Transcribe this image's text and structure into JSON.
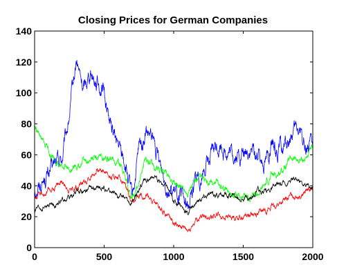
{
  "chart_data": {
    "type": "line",
    "title": "Closing Prices for German Companies",
    "xlabel": "",
    "ylabel": "",
    "xlim": [
      0,
      2000
    ],
    "ylim": [
      0,
      140
    ],
    "x_ticks": [
      0,
      500,
      1000,
      1500,
      2000
    ],
    "y_ticks": [
      0,
      20,
      40,
      60,
      80,
      100,
      120,
      140
    ],
    "grid": false,
    "legend": "none",
    "series": [
      {
        "color": "#0000ff",
        "x": [
          0,
          50,
          100,
          150,
          200,
          250,
          300,
          350,
          400,
          450,
          500,
          550,
          600,
          650,
          700,
          750,
          800,
          850,
          900,
          950,
          1000,
          1050,
          1100,
          1150,
          1200,
          1250,
          1300,
          1350,
          1400,
          1450,
          1500,
          1550,
          1600,
          1650,
          1700,
          1750,
          1800,
          1850,
          1900,
          1950,
          2000
        ],
        "y": [
          38,
          42,
          48,
          54,
          58,
          85,
          120,
          102,
          115,
          108,
          100,
          78,
          66,
          55,
          30,
          62,
          74,
          68,
          54,
          42,
          35,
          32,
          26,
          42,
          48,
          56,
          64,
          66,
          60,
          58,
          60,
          62,
          60,
          58,
          62,
          63,
          65,
          72,
          76,
          66,
          64
        ],
        "amplitude": 5
      },
      {
        "color": "#00ff00",
        "x": [
          0,
          50,
          100,
          150,
          200,
          250,
          300,
          350,
          400,
          450,
          500,
          550,
          600,
          650,
          700,
          750,
          800,
          850,
          900,
          950,
          1000,
          1050,
          1100,
          1150,
          1200,
          1250,
          1300,
          1350,
          1400,
          1450,
          1500,
          1550,
          1600,
          1650,
          1700,
          1750,
          1800,
          1850,
          1900,
          1950,
          2000
        ],
        "y": [
          78,
          68,
          64,
          54,
          52,
          50,
          52,
          56,
          56,
          58,
          58,
          56,
          56,
          48,
          30,
          42,
          58,
          52,
          50,
          48,
          42,
          40,
          36,
          42,
          44,
          40,
          42,
          40,
          36,
          34,
          34,
          33,
          34,
          40,
          46,
          48,
          52,
          58,
          56,
          58,
          64
        ],
        "amplitude": 2.2
      },
      {
        "color": "#ff0000",
        "x": [
          0,
          50,
          100,
          150,
          200,
          250,
          300,
          350,
          400,
          450,
          500,
          550,
          600,
          650,
          700,
          750,
          800,
          850,
          900,
          950,
          1000,
          1050,
          1100,
          1150,
          1200,
          1250,
          1300,
          1350,
          1400,
          1450,
          1500,
          1550,
          1600,
          1650,
          1700,
          1750,
          1800,
          1850,
          1900,
          1950,
          2000
        ],
        "y": [
          32,
          34,
          36,
          40,
          42,
          38,
          40,
          42,
          46,
          50,
          50,
          46,
          46,
          42,
          26,
          34,
          34,
          30,
          26,
          22,
          16,
          14,
          10,
          16,
          20,
          20,
          22,
          20,
          20,
          20,
          20,
          22,
          22,
          24,
          26,
          28,
          30,
          34,
          34,
          36,
          38
        ],
        "amplitude": 1.8
      },
      {
        "color": "#000000",
        "x": [
          0,
          50,
          100,
          150,
          200,
          250,
          300,
          350,
          400,
          450,
          500,
          550,
          600,
          650,
          700,
          750,
          800,
          850,
          900,
          950,
          1000,
          1050,
          1100,
          1150,
          1200,
          1250,
          1300,
          1350,
          1400,
          1450,
          1500,
          1550,
          1600,
          1650,
          1700,
          1750,
          1800,
          1850,
          1900,
          1950,
          2000
        ],
        "y": [
          24,
          25,
          27,
          28,
          30,
          32,
          36,
          37,
          38,
          38,
          38,
          36,
          34,
          32,
          28,
          38,
          44,
          46,
          42,
          40,
          30,
          28,
          22,
          28,
          32,
          34,
          34,
          34,
          34,
          33,
          32,
          32,
          36,
          36,
          38,
          40,
          42,
          44,
          44,
          40,
          40
        ],
        "amplitude": 1.6
      }
    ]
  }
}
